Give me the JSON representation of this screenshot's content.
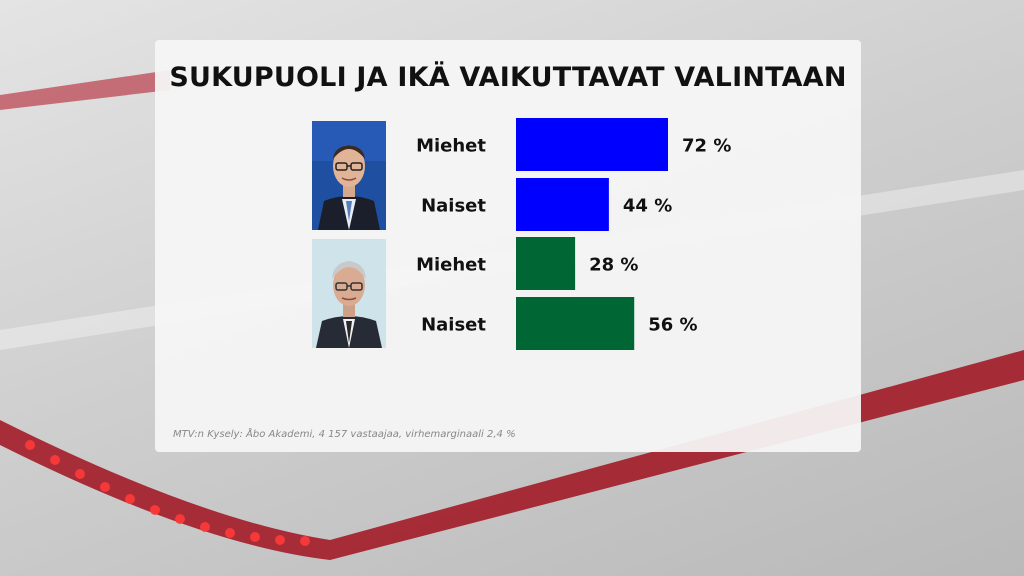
{
  "colors": {
    "series_1": "#0000ff",
    "series_2": "#006633",
    "accent_red": "#c8102e"
  },
  "images": [
    {
      "name": "candidate-photo-1",
      "description": "man with glasses in dark suit, blue background"
    },
    {
      "name": "candidate-photo-2",
      "description": "grey-haired man with glasses in dark suit, light background"
    }
  ],
  "chart_data": {
    "type": "bar",
    "orientation": "horizontal",
    "title": "SUKUPUOLI JA IKÄ VAIKUTTAVAT VALINTAAN",
    "xlim": [
      0,
      100
    ],
    "grid": false,
    "groups": [
      {
        "color": "#0000ff",
        "bars": [
          {
            "category": "Miehet",
            "value": 72,
            "label": "72 %"
          },
          {
            "category": "Naiset",
            "value": 44,
            "label": "44 %"
          }
        ]
      },
      {
        "color": "#006633",
        "bars": [
          {
            "category": "Miehet",
            "value": 28,
            "label": "28 %"
          },
          {
            "category": "Naiset",
            "value": 56,
            "label": "56 %"
          }
        ]
      }
    ],
    "source": "MTV:n Kysely: Åbo Akademi, 4 157 vastaajaa, virhemarginaali 2,4 %"
  }
}
